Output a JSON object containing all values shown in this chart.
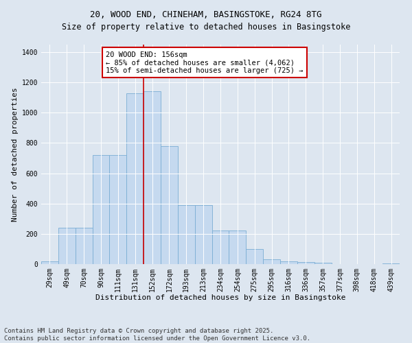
{
  "title": "20, WOOD END, CHINEHAM, BASINGSTOKE, RG24 8TG",
  "subtitle": "Size of property relative to detached houses in Basingstoke",
  "xlabel": "Distribution of detached houses by size in Basingstoke",
  "ylabel": "Number of detached properties",
  "categories": [
    "29sqm",
    "49sqm",
    "70sqm",
    "90sqm",
    "111sqm",
    "131sqm",
    "152sqm",
    "172sqm",
    "193sqm",
    "213sqm",
    "234sqm",
    "254sqm",
    "275sqm",
    "295sqm",
    "316sqm",
    "336sqm",
    "357sqm",
    "377sqm",
    "398sqm",
    "418sqm",
    "439sqm"
  ],
  "values": [
    20,
    240,
    240,
    720,
    720,
    1130,
    1140,
    780,
    390,
    390,
    220,
    220,
    100,
    30,
    20,
    12,
    8,
    0,
    0,
    0,
    5
  ],
  "bar_color": "#c5d9ef",
  "bar_edge_color": "#7aadd4",
  "vline_x": 5.5,
  "vline_color": "#cc0000",
  "annotation_text": "20 WOOD END: 156sqm\n← 85% of detached houses are smaller (4,062)\n15% of semi-detached houses are larger (725) →",
  "annotation_box_color": "#ffffff",
  "annotation_box_edge_color": "#cc0000",
  "ylim": [
    0,
    1450
  ],
  "yticks": [
    0,
    200,
    400,
    600,
    800,
    1000,
    1200,
    1400
  ],
  "bg_color": "#dde6f0",
  "plot_bg_color": "#dde6f0",
  "footer": "Contains HM Land Registry data © Crown copyright and database right 2025.\nContains public sector information licensed under the Open Government Licence v3.0.",
  "title_fontsize": 9,
  "xlabel_fontsize": 8,
  "ylabel_fontsize": 8,
  "tick_fontsize": 7,
  "annotation_fontsize": 7.5,
  "footer_fontsize": 6.5
}
